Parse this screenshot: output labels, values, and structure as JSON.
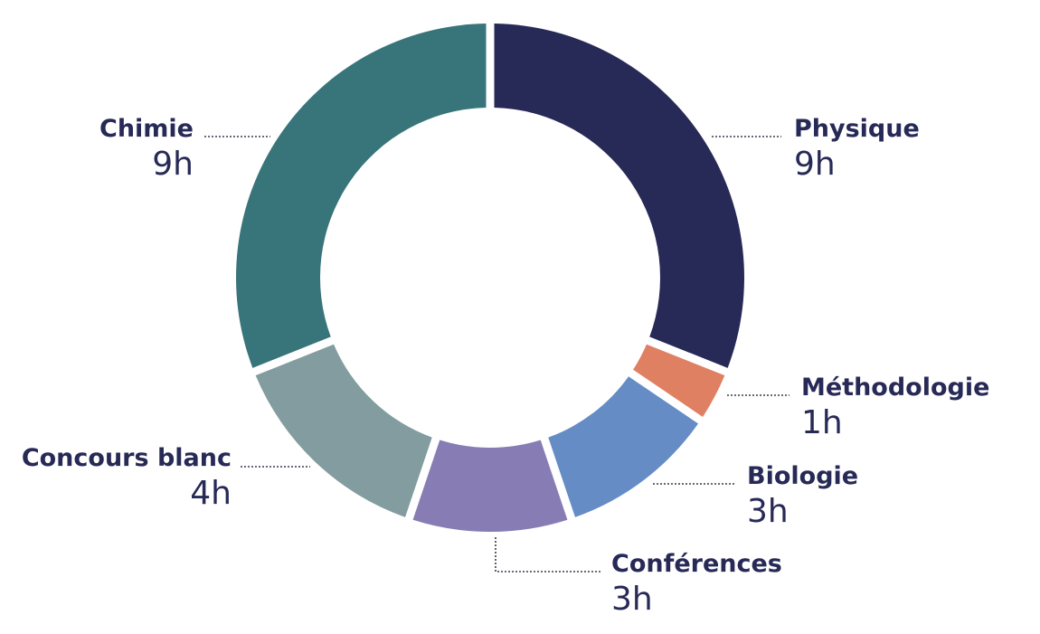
{
  "chart_data": {
    "type": "pie",
    "variant": "donut",
    "title": "",
    "unit": "h",
    "series": [
      {
        "slices": [
          {
            "label": "Physique",
            "value": 9,
            "display": "9h",
            "color": "#272956",
            "text_side": "right"
          },
          {
            "label": "Méthodologie",
            "value": 1,
            "display": "1h",
            "color": "#df8063",
            "text_side": "right"
          },
          {
            "label": "Biologie",
            "value": 3,
            "display": "3h",
            "color": "#668cc6",
            "text_side": "right"
          },
          {
            "label": "Conférences",
            "value": 3,
            "display": "3h",
            "color": "#877db4",
            "text_side": "right"
          },
          {
            "label": "Concours blanc",
            "value": 4,
            "display": "4h",
            "color": "#829c9f",
            "text_side": "left"
          },
          {
            "label": "Chimie",
            "value": 9,
            "display": "9h",
            "color": "#38757a",
            "text_side": "left"
          }
        ]
      }
    ],
    "legend": "none",
    "label_color": "#272956",
    "leader_color": "#3a3a4a"
  }
}
